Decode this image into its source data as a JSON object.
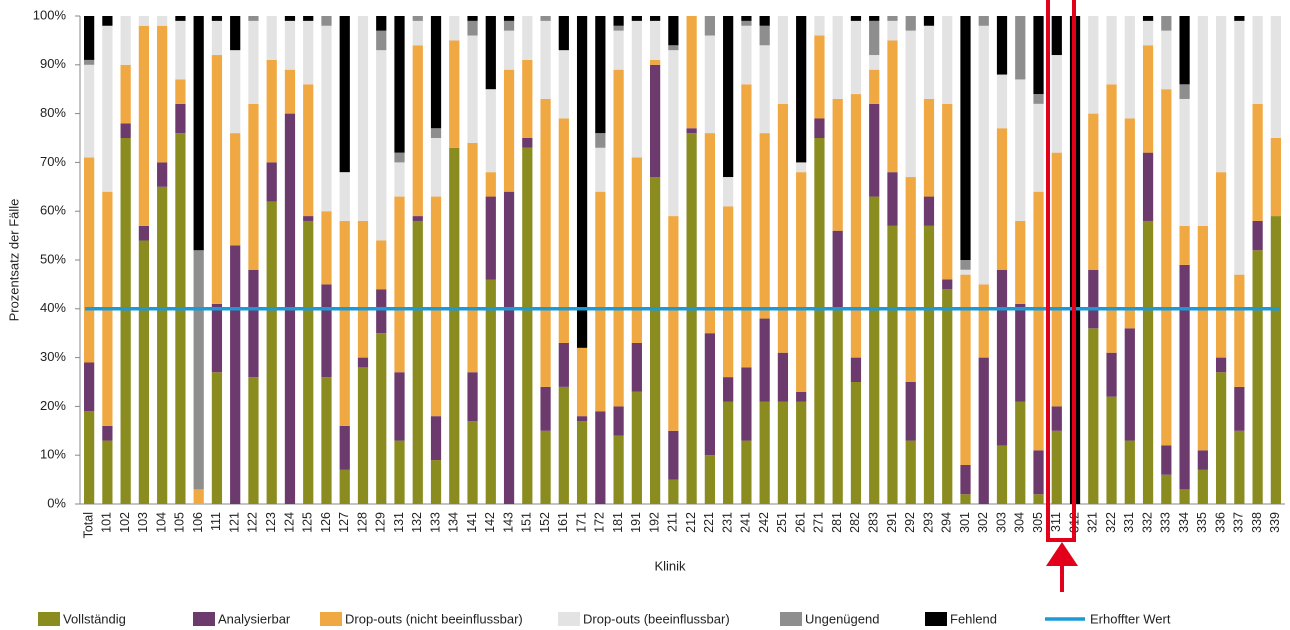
{
  "chart_data": {
    "type": "stacked_bar",
    "x_label": "Klinik",
    "y_label": "Prozentsatz der Fälle",
    "categories": [
      "Total",
      "101",
      "102",
      "103",
      "104",
      "105",
      "106",
      "111",
      "121",
      "122",
      "123",
      "124",
      "125",
      "126",
      "127",
      "128",
      "129",
      "131",
      "132",
      "133",
      "134",
      "141",
      "142",
      "143",
      "151",
      "152",
      "161",
      "171",
      "172",
      "181",
      "191",
      "192",
      "211",
      "212",
      "221",
      "231",
      "241",
      "242",
      "251",
      "261",
      "271",
      "281",
      "282",
      "283",
      "291",
      "292",
      "293",
      "294",
      "301",
      "302",
      "303",
      "304",
      "305",
      "311",
      "312",
      "321",
      "322",
      "331",
      "332",
      "333",
      "334",
      "335",
      "336",
      "337",
      "338",
      "339"
    ],
    "series": [
      {
        "name": "Vollständig",
        "color": "#8b8c20",
        "values": [
          19,
          13,
          75,
          54,
          65,
          76,
          0,
          27,
          0,
          26,
          62,
          0,
          58,
          26,
          7,
          28,
          35,
          13,
          58,
          9,
          73,
          17,
          46,
          0,
          73,
          15,
          24,
          17,
          0,
          14,
          23,
          67,
          5,
          76,
          10,
          21,
          13,
          21,
          21,
          21,
          75,
          40,
          25,
          63,
          57,
          13,
          57,
          44,
          2,
          0,
          12,
          21,
          2,
          15,
          0,
          36,
          22,
          13,
          58,
          6,
          3,
          7,
          27,
          15,
          52,
          59
        ]
      },
      {
        "name": "Analysierbar",
        "color": "#6c3a6c",
        "values": [
          10,
          3,
          3,
          3,
          5,
          6,
          0,
          14,
          53,
          22,
          8,
          80,
          1,
          19,
          9,
          2,
          9,
          14,
          1,
          9,
          0,
          10,
          17,
          64,
          2,
          9,
          9,
          1,
          19,
          6,
          10,
          23,
          10,
          1,
          25,
          5,
          15,
          17,
          10,
          2,
          4,
          16,
          5,
          19,
          11,
          12,
          6,
          2,
          6,
          30,
          36,
          20,
          9,
          5,
          0,
          12,
          9,
          23,
          14,
          6,
          46,
          4,
          3,
          9,
          6,
          0
        ]
      },
      {
        "name": "Drop-outs (nicht beeinflussbar)",
        "color": "#f0a843",
        "values": [
          42,
          48,
          12,
          41,
          28,
          5,
          3,
          51,
          23,
          34,
          21,
          9,
          27,
          15,
          42,
          28,
          10,
          36,
          35,
          45,
          22,
          47,
          5,
          25,
          16,
          59,
          46,
          14,
          45,
          69,
          38,
          1,
          44,
          23,
          41,
          35,
          58,
          38,
          51,
          45,
          17,
          27,
          54,
          7,
          27,
          42,
          20,
          36,
          39,
          15,
          29,
          17,
          53,
          52,
          0,
          32,
          55,
          43,
          22,
          73,
          8,
          46,
          38,
          23,
          24,
          16
        ]
      },
      {
        "name": "Drop-outs (beeinflussbar)",
        "color": "#e3e3e3",
        "values": [
          19,
          34,
          10,
          2,
          2,
          12,
          0,
          7,
          17,
          17,
          9,
          10,
          13,
          38,
          10,
          42,
          39,
          7,
          5,
          12,
          5,
          22,
          17,
          8,
          9,
          16,
          14,
          0,
          9,
          8,
          28,
          8,
          34,
          0,
          20,
          6,
          12,
          18,
          18,
          2,
          4,
          17,
          15,
          3,
          4,
          30,
          15,
          18,
          1,
          53,
          11,
          29,
          18,
          20,
          0,
          20,
          14,
          21,
          5,
          12,
          26,
          43,
          32,
          52,
          18,
          25
        ]
      },
      {
        "name": "Ungenügend",
        "color": "#8e8e8e",
        "values": [
          1,
          0,
          0,
          0,
          0,
          0,
          49,
          0,
          0,
          1,
          0,
          0,
          0,
          2,
          0,
          0,
          4,
          2,
          1,
          2,
          0,
          3,
          0,
          2,
          0,
          1,
          0,
          0,
          3,
          1,
          0,
          0,
          1,
          0,
          4,
          0,
          1,
          4,
          0,
          0,
          0,
          0,
          0,
          7,
          1,
          3,
          0,
          0,
          2,
          2,
          0,
          13,
          2,
          0,
          0,
          0,
          0,
          0,
          0,
          3,
          3,
          0,
          0,
          0,
          0,
          0
        ]
      },
      {
        "name": "Fehlend",
        "color": "#000000",
        "values": [
          9,
          2,
          0,
          0,
          0,
          1,
          48,
          1,
          7,
          0,
          0,
          1,
          1,
          0,
          32,
          0,
          3,
          28,
          0,
          23,
          0,
          1,
          15,
          1,
          0,
          0,
          7,
          68,
          24,
          2,
          1,
          1,
          6,
          0,
          0,
          33,
          1,
          2,
          0,
          30,
          0,
          0,
          1,
          1,
          0,
          0,
          2,
          0,
          50,
          0,
          12,
          0,
          16,
          8,
          100,
          0,
          0,
          0,
          1,
          0,
          14,
          0,
          0,
          1,
          0,
          0
        ]
      }
    ],
    "target": {
      "name": "Erhoffter Wert",
      "value": 40,
      "color": "#1b9ad6"
    },
    "ylim": [
      0,
      100
    ],
    "yticks": [
      {
        "value": 0,
        "label": "0%"
      },
      {
        "value": 10,
        "label": "10%"
      },
      {
        "value": 20,
        "label": "20%"
      },
      {
        "value": 30,
        "label": "30%"
      },
      {
        "value": 40,
        "label": "40%"
      },
      {
        "value": 50,
        "label": "50%"
      },
      {
        "value": 60,
        "label": "60%"
      },
      {
        "value": 70,
        "label": "70%"
      },
      {
        "value": 80,
        "label": "80%"
      },
      {
        "value": 90,
        "label": "90%"
      },
      {
        "value": 100,
        "label": "100%"
      }
    ],
    "grid": false,
    "legend": "bottom"
  }
}
